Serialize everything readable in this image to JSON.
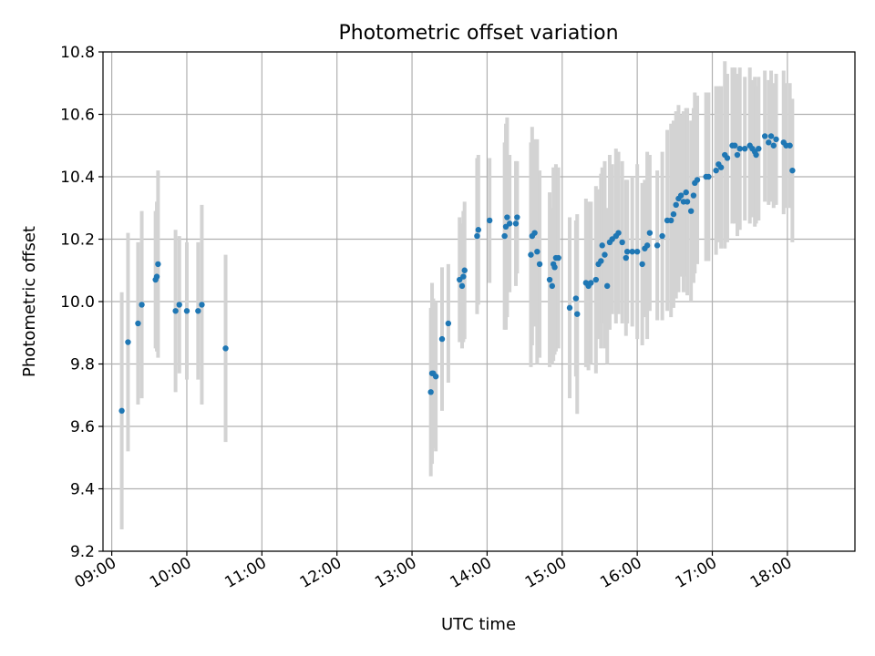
{
  "chart_data": {
    "type": "scatter",
    "title": "Photometric offset variation",
    "xlabel": "UTC time",
    "ylabel": "Photometric offset",
    "xlim": [
      "08:53",
      "18:54"
    ],
    "ylim": [
      9.2,
      10.8
    ],
    "grid": true,
    "xticks": [
      "09:00",
      "10:00",
      "11:00",
      "12:00",
      "13:00",
      "14:00",
      "15:00",
      "16:00",
      "17:00",
      "18:00"
    ],
    "yticks": [
      "9.2",
      "9.4",
      "9.6",
      "9.8",
      "10.0",
      "10.2",
      "10.4",
      "10.6",
      "10.8"
    ],
    "colors": {
      "points": "#1f77b4",
      "errorbars": "#d3d3d3",
      "grid": "#b0b0b0"
    },
    "series": [
      {
        "marker": "dot",
        "points": [
          [
            "09:08",
            9.65,
            0.38
          ],
          [
            "09:13",
            9.87,
            0.35
          ],
          [
            "09:21",
            9.93,
            0.26
          ],
          [
            "09:24",
            9.99,
            0.3
          ],
          [
            "09:35",
            10.07,
            0.22
          ],
          [
            "09:36",
            10.08,
            0.24
          ],
          [
            "09:37",
            10.12,
            0.3
          ],
          [
            "09:51",
            9.97,
            0.26
          ],
          [
            "09:54",
            9.99,
            0.22
          ],
          [
            "10:00",
            9.97,
            0.22
          ],
          [
            "10:09",
            9.97,
            0.22
          ],
          [
            "10:12",
            9.99,
            0.32
          ],
          [
            "10:31",
            9.85,
            0.3
          ],
          [
            "13:15",
            9.71,
            0.27
          ],
          [
            "13:16",
            9.77,
            0.29
          ],
          [
            "13:17",
            9.77,
            0.24
          ],
          [
            "13:19",
            9.76,
            0.24
          ],
          [
            "13:24",
            9.88,
            0.23
          ],
          [
            "13:29",
            9.93,
            0.19
          ],
          [
            "13:38",
            10.07,
            0.2
          ],
          [
            "13:40",
            10.05,
            0.2
          ],
          [
            "13:41",
            10.08,
            0.21
          ],
          [
            "13:42",
            10.1,
            0.22
          ],
          [
            "13:52",
            10.21,
            0.25
          ],
          [
            "13:53",
            10.23,
            0.24
          ],
          [
            "14:02",
            10.26,
            0.2
          ],
          [
            "14:14",
            10.21,
            0.3
          ],
          [
            "14:15",
            10.24,
            0.33
          ],
          [
            "14:16",
            10.27,
            0.32
          ],
          [
            "14:18",
            10.25,
            0.22
          ],
          [
            "14:23",
            10.25,
            0.2
          ],
          [
            "14:24",
            10.27,
            0.18
          ],
          [
            "14:35",
            10.15,
            0.36
          ],
          [
            "14:36",
            10.21,
            0.35
          ],
          [
            "14:38",
            10.22,
            0.3
          ],
          [
            "14:40",
            10.16,
            0.36
          ],
          [
            "14:42",
            10.12,
            0.3
          ],
          [
            "14:50",
            10.07,
            0.28
          ],
          [
            "14:52",
            10.05,
            0.25
          ],
          [
            "14:53",
            10.12,
            0.31
          ],
          [
            "14:54",
            10.11,
            0.28
          ],
          [
            "14:55",
            10.14,
            0.3
          ],
          [
            "14:57",
            10.14,
            0.29
          ],
          [
            "15:06",
            9.98,
            0.29
          ],
          [
            "15:11",
            10.01,
            0.25
          ],
          [
            "15:12",
            9.96,
            0.32
          ],
          [
            "15:19",
            10.06,
            0.27
          ],
          [
            "15:21",
            10.05,
            0.27
          ],
          [
            "15:23",
            10.06,
            0.26
          ],
          [
            "15:27",
            10.07,
            0.3
          ],
          [
            "15:29",
            10.12,
            0.24
          ],
          [
            "15:31",
            10.13,
            0.28
          ],
          [
            "15:32",
            10.18,
            0.25
          ],
          [
            "15:34",
            10.15,
            0.3
          ],
          [
            "15:36",
            10.05,
            0.25
          ],
          [
            "15:38",
            10.19,
            0.28
          ],
          [
            "15:40",
            10.2,
            0.24
          ],
          [
            "15:43",
            10.21,
            0.28
          ],
          [
            "15:45",
            10.22,
            0.26
          ],
          [
            "15:48",
            10.19,
            0.26
          ],
          [
            "15:51",
            10.14,
            0.25
          ],
          [
            "15:52",
            10.16,
            0.23
          ],
          [
            "15:56",
            10.16,
            0.24
          ],
          [
            "16:00",
            10.16,
            0.28
          ],
          [
            "16:04",
            10.12,
            0.26
          ],
          [
            "16:06",
            10.17,
            0.22
          ],
          [
            "16:08",
            10.18,
            0.3
          ],
          [
            "16:10",
            10.22,
            0.25
          ],
          [
            "16:16",
            10.18,
            0.24
          ],
          [
            "16:20",
            10.21,
            0.27
          ],
          [
            "16:24",
            10.26,
            0.29
          ],
          [
            "16:27",
            10.26,
            0.31
          ],
          [
            "16:29",
            10.28,
            0.3
          ],
          [
            "16:31",
            10.31,
            0.3
          ],
          [
            "16:33",
            10.33,
            0.3
          ],
          [
            "16:35",
            10.34,
            0.26
          ],
          [
            "16:37",
            10.32,
            0.29
          ],
          [
            "16:39",
            10.35,
            0.27
          ],
          [
            "16:40",
            10.32,
            0.3
          ],
          [
            "16:43",
            10.29,
            0.29
          ],
          [
            "16:45",
            10.34,
            0.28
          ],
          [
            "16:46",
            10.38,
            0.29
          ],
          [
            "16:48",
            10.39,
            0.27
          ],
          [
            "16:55",
            10.4,
            0.27
          ],
          [
            "16:57",
            10.4,
            0.27
          ],
          [
            "17:03",
            10.42,
            0.27
          ],
          [
            "17:05",
            10.44,
            0.25
          ],
          [
            "17:07",
            10.43,
            0.26
          ],
          [
            "17:10",
            10.47,
            0.3
          ],
          [
            "17:12",
            10.46,
            0.27
          ],
          [
            "17:16",
            10.5,
            0.25
          ],
          [
            "17:18",
            10.5,
            0.25
          ],
          [
            "17:20",
            10.47,
            0.26
          ],
          [
            "17:22",
            10.49,
            0.26
          ],
          [
            "17:26",
            10.49,
            0.23
          ],
          [
            "17:30",
            10.5,
            0.25
          ],
          [
            "17:32",
            10.49,
            0.22
          ],
          [
            "17:34",
            10.48,
            0.24
          ],
          [
            "17:35",
            10.47,
            0.22
          ],
          [
            "17:37",
            10.49,
            0.23
          ],
          [
            "17:42",
            10.53,
            0.21
          ],
          [
            "17:45",
            10.51,
            0.2
          ],
          [
            "17:47",
            10.53,
            0.21
          ],
          [
            "17:49",
            10.5,
            0.2
          ],
          [
            "17:51",
            10.52,
            0.21
          ],
          [
            "17:57",
            10.51,
            0.23
          ],
          [
            "17:59",
            10.5,
            0.2
          ],
          [
            "18:02",
            10.5,
            0.2
          ],
          [
            "18:04",
            10.42,
            0.23
          ]
        ]
      }
    ]
  }
}
